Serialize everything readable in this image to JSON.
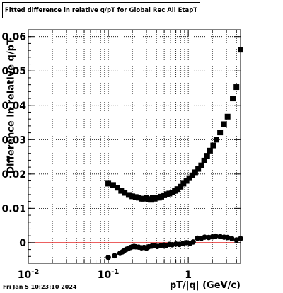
{
  "chart_data": {
    "type": "scatter",
    "title": "Fitted difference in relative q/pT for Global Rec All EtapT",
    "xlabel": "pT/|q| (GeV/c)",
    "ylabel": "Difference in relative q/pT",
    "x_scale": "log",
    "xlim": [
      0.01,
      4.5
    ],
    "ylim": [
      -0.006,
      0.062
    ],
    "x_ticks": [
      {
        "value": 0.01,
        "label": "10^-2"
      },
      {
        "value": 0.1,
        "label": "10^-1"
      },
      {
        "value": 1,
        "label": "1"
      }
    ],
    "y_ticks": [
      {
        "value": 0,
        "label": "0"
      },
      {
        "value": 0.01,
        "label": "0.01"
      },
      {
        "value": 0.02,
        "label": "0.02"
      },
      {
        "value": 0.03,
        "label": "0.03"
      },
      {
        "value": 0.04,
        "label": "0.04"
      },
      {
        "value": 0.05,
        "label": "0.05"
      },
      {
        "value": 0.06,
        "label": "0.06"
      }
    ],
    "grid": true,
    "reference_line": {
      "y": 0,
      "color": "#e00000"
    },
    "marker_color": "#000000",
    "series": [
      {
        "marker": "square",
        "x": [
          0.1,
          0.115,
          0.13,
          0.145,
          0.16,
          0.18,
          0.2,
          0.22,
          0.24,
          0.26,
          0.28,
          0.3,
          0.32,
          0.34,
          0.36,
          0.38,
          0.4,
          0.43,
          0.46,
          0.5,
          0.54,
          0.58,
          0.63,
          0.68,
          0.73,
          0.8,
          0.87,
          0.95,
          1.03,
          1.12,
          1.22,
          1.33,
          1.45,
          1.58,
          1.72,
          1.87,
          2.05,
          2.25,
          2.5,
          2.8,
          3.1,
          3.6,
          4.0,
          4.5
        ],
        "y": [
          0.0172,
          0.0168,
          0.016,
          0.0151,
          0.0145,
          0.0139,
          0.0135,
          0.0133,
          0.0131,
          0.0128,
          0.0128,
          0.0131,
          0.0127,
          0.0125,
          0.0131,
          0.0128,
          0.0131,
          0.0131,
          0.0134,
          0.0138,
          0.0141,
          0.0143,
          0.0146,
          0.0151,
          0.0156,
          0.0163,
          0.0172,
          0.018,
          0.0188,
          0.0196,
          0.0205,
          0.0215,
          0.0225,
          0.0239,
          0.0253,
          0.0268,
          0.0283,
          0.03,
          0.0321,
          0.0345,
          0.0367,
          0.042,
          0.0453,
          0.0562
        ]
      },
      {
        "marker": "circle",
        "x": [
          0.1,
          0.12,
          0.14,
          0.15,
          0.16,
          0.17,
          0.18,
          0.19,
          0.2,
          0.21,
          0.22,
          0.24,
          0.26,
          0.28,
          0.3,
          0.32,
          0.35,
          0.38,
          0.41,
          0.45,
          0.49,
          0.53,
          0.58,
          0.63,
          0.7,
          0.77,
          0.85,
          0.95,
          1.05,
          1.15,
          1.3,
          1.45,
          1.6,
          1.8,
          2.0,
          2.2,
          2.5,
          2.8,
          3.1,
          3.5,
          4.0,
          4.5
        ],
        "y": [
          -0.0043,
          -0.0038,
          -0.0031,
          -0.0027,
          -0.0022,
          -0.0019,
          -0.0016,
          -0.0014,
          -0.0012,
          -0.0011,
          -0.0012,
          -0.0013,
          -0.0015,
          -0.0014,
          -0.0016,
          -0.0012,
          -0.001,
          -0.0008,
          -0.0011,
          -0.0009,
          -0.0007,
          -0.0008,
          -0.0005,
          -0.0006,
          -0.0004,
          -0.0005,
          -0.0003,
          0.0,
          -0.0002,
          0.0002,
          0.0013,
          0.0012,
          0.0016,
          0.0015,
          0.0017,
          0.0019,
          0.0018,
          0.0016,
          0.0015,
          0.0012,
          0.0008,
          0.0012
        ]
      }
    ]
  },
  "footer": {
    "timestamp": "Fri Jan  5 10:23:10 2024"
  }
}
